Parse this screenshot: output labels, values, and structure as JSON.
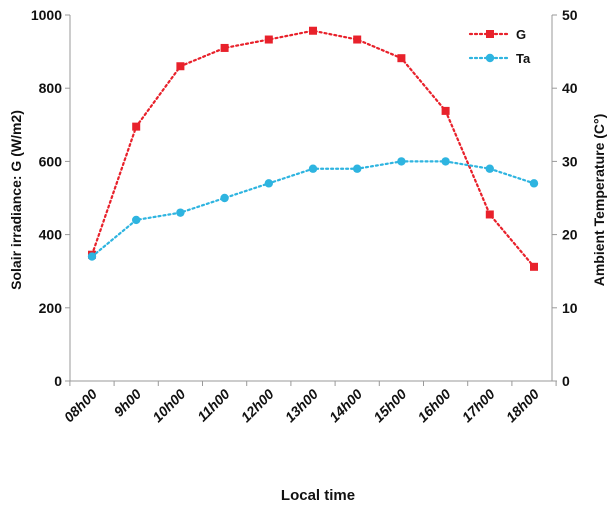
{
  "chart_data": {
    "type": "line",
    "xlabel": "Local time",
    "ylabel_left": "Solair irradiance: G  (W/m2)",
    "ylabel_right": "Ambient  Temperature (C°)",
    "categories": [
      "08h00",
      "9h00",
      "10h00",
      "11h00",
      "12h00",
      "13h00",
      "14h00",
      "15h00",
      "16h00",
      "17h00",
      "18h00"
    ],
    "y_left_lim": [
      0,
      1000
    ],
    "y_left_ticks": [
      0,
      200,
      400,
      600,
      800,
      1000
    ],
    "y_right_lim": [
      0,
      50
    ],
    "y_right_ticks": [
      0,
      10,
      20,
      30,
      40,
      50
    ],
    "grid": false,
    "legend_position": "top-right",
    "series": [
      {
        "name": "G",
        "axis": "left",
        "color": "#e8212b",
        "marker": "square",
        "values": [
          345,
          695,
          860,
          910,
          933,
          957,
          933,
          882,
          738,
          455,
          312
        ]
      },
      {
        "name": "Ta",
        "axis": "right",
        "color": "#2eb4e0",
        "marker": "circle",
        "values": [
          17,
          22,
          23,
          25,
          27,
          29,
          29,
          30,
          30,
          29,
          27
        ]
      }
    ]
  }
}
